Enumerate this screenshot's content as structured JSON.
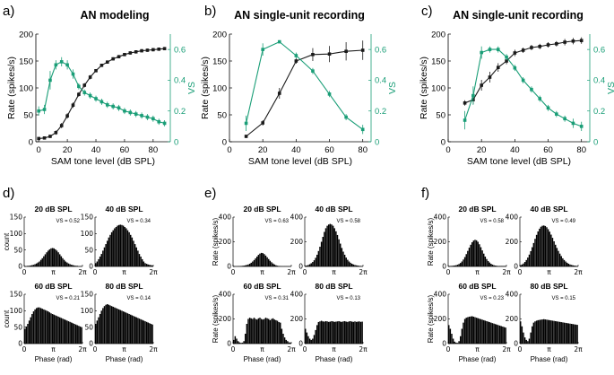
{
  "chart_data": [
    {
      "type": "line",
      "panel": "a)",
      "title": "AN modeling",
      "xlabel": "SAM tone level (dB SPL)",
      "ylabel": "Rate (spikes/s)",
      "ylabel_right": "VS",
      "xlim": [
        -2,
        92
      ],
      "ylim": [
        0,
        200
      ],
      "ylim_right": [
        0,
        0.7
      ],
      "xticks": [
        0,
        20,
        40,
        60,
        80
      ],
      "yticks": [
        0,
        50,
        100,
        150,
        200
      ],
      "yticks_right": [
        0,
        0.2,
        0.4,
        0.6
      ],
      "colors": {
        "rate": "#1a1a1a",
        "vs": "#1a9e77"
      },
      "series": [
        {
          "axis": "left",
          "x": [
            0,
            4,
            8,
            12,
            16,
            20,
            24,
            28,
            32,
            36,
            40,
            44,
            48,
            52,
            56,
            60,
            64,
            68,
            72,
            76,
            80,
            84,
            88
          ],
          "values": [
            6,
            7,
            10,
            17,
            30,
            48,
            68,
            88,
            105,
            120,
            132,
            142,
            148,
            154,
            158,
            162,
            165,
            167,
            169,
            170,
            171,
            172,
            173
          ],
          "err": [
            2,
            2,
            3,
            4,
            5,
            5,
            5,
            4,
            4,
            4,
            3,
            3,
            3,
            3,
            3,
            3,
            3,
            3,
            3,
            3,
            3,
            3,
            3
          ]
        },
        {
          "axis": "right",
          "x": [
            0,
            4,
            8,
            12,
            16,
            20,
            24,
            28,
            32,
            36,
            40,
            44,
            48,
            52,
            56,
            60,
            64,
            68,
            72,
            76,
            80,
            84,
            88
          ],
          "values": [
            0.2,
            0.21,
            0.4,
            0.5,
            0.52,
            0.5,
            0.44,
            0.36,
            0.32,
            0.3,
            0.28,
            0.26,
            0.24,
            0.23,
            0.22,
            0.2,
            0.19,
            0.18,
            0.17,
            0.16,
            0.15,
            0.13,
            0.12
          ],
          "err": [
            0.03,
            0.03,
            0.06,
            0.03,
            0.03,
            0.03,
            0.03,
            0.02,
            0.02,
            0.02,
            0.02,
            0.02,
            0.02,
            0.02,
            0.02,
            0.02,
            0.02,
            0.02,
            0.02,
            0.02,
            0.02,
            0.02,
            0.02
          ]
        }
      ]
    },
    {
      "type": "line",
      "panel": "b)",
      "title": "AN single-unit recording",
      "xlabel": "SAM tone level (dB SPL)",
      "ylabel": "Rate (spikes/s)",
      "ylabel_right": "VS",
      "xlim": [
        0,
        85
      ],
      "ylim": [
        0,
        200
      ],
      "ylim_right": [
        0,
        0.7
      ],
      "xticks": [
        0,
        20,
        40,
        60,
        80
      ],
      "yticks": [
        0,
        50,
        100,
        150,
        200
      ],
      "yticks_right": [
        0,
        0.2,
        0.4,
        0.6
      ],
      "colors": {
        "rate": "#1a1a1a",
        "vs": "#1a9e77"
      },
      "series": [
        {
          "axis": "left",
          "x": [
            10,
            20,
            30,
            40,
            50,
            60,
            70,
            80
          ],
          "values": [
            10,
            35,
            90,
            150,
            162,
            163,
            168,
            170
          ],
          "err": [
            3,
            5,
            10,
            5,
            12,
            15,
            17,
            18
          ]
        },
        {
          "axis": "right",
          "x": [
            10,
            20,
            30,
            40,
            50,
            60,
            70,
            80
          ],
          "values": [
            0.12,
            0.6,
            0.65,
            0.56,
            0.46,
            0.31,
            0.16,
            0.08
          ],
          "err": [
            0.05,
            0.04,
            0.01,
            0.02,
            0.02,
            0.02,
            0.02,
            0.03
          ]
        }
      ]
    },
    {
      "type": "line",
      "panel": "c)",
      "title": "AN single-unit recording",
      "xlabel": "SAM tone level (dB SPL)",
      "ylabel": "Rate (spikes/s)",
      "ylabel_right": "VS",
      "xlim": [
        0,
        85
      ],
      "ylim": [
        0,
        200
      ],
      "ylim_right": [
        0,
        0.7
      ],
      "xticks": [
        0,
        20,
        40,
        60,
        80
      ],
      "yticks": [
        0,
        50,
        100,
        150,
        200
      ],
      "yticks_right": [
        0,
        0.2,
        0.4,
        0.6
      ],
      "colors": {
        "rate": "#1a1a1a",
        "vs": "#1a9e77"
      },
      "series": [
        {
          "axis": "left",
          "x": [
            10,
            15,
            20,
            25,
            30,
            35,
            40,
            45,
            50,
            55,
            60,
            65,
            70,
            75,
            80
          ],
          "values": [
            72,
            78,
            105,
            120,
            138,
            150,
            165,
            170,
            175,
            177,
            180,
            182,
            185,
            187,
            188
          ],
          "err": [
            5,
            8,
            10,
            10,
            8,
            6,
            6,
            5,
            5,
            5,
            5,
            5,
            6,
            6,
            6
          ]
        },
        {
          "axis": "right",
          "x": [
            10,
            15,
            20,
            25,
            30,
            35,
            40,
            45,
            50,
            55,
            60,
            65,
            70,
            75,
            80
          ],
          "values": [
            0.14,
            0.3,
            0.58,
            0.6,
            0.6,
            0.55,
            0.48,
            0.4,
            0.34,
            0.28,
            0.22,
            0.18,
            0.15,
            0.12,
            0.1
          ],
          "err": [
            0.06,
            0.06,
            0.04,
            0.02,
            0.02,
            0.02,
            0.02,
            0.02,
            0.02,
            0.02,
            0.02,
            0.02,
            0.02,
            0.03,
            0.03
          ]
        }
      ]
    },
    {
      "type": "bar",
      "panel": "d)",
      "ylabel": "count",
      "xlabel": "Phase (rad)",
      "ylim": [
        0,
        150
      ],
      "yticks": [
        0,
        50,
        100,
        150
      ],
      "xticks": [
        "0",
        "π",
        "2π"
      ],
      "histograms": [
        {
          "title": "20 dB SPL",
          "vs": "VS = 0.52",
          "values": [
            1,
            1,
            2,
            2,
            3,
            4,
            5,
            7,
            9,
            12,
            15,
            20,
            25,
            31,
            37,
            43,
            48,
            52,
            55,
            56,
            55,
            52,
            48,
            43,
            37,
            31,
            25,
            20,
            15,
            12,
            9,
            7,
            5,
            4,
            3,
            2,
            2,
            1,
            1,
            1
          ]
        },
        {
          "title": "40 dB SPL",
          "vs": "VS = 0.34",
          "values": [
            10,
            15,
            22,
            30,
            38,
            48,
            58,
            68,
            78,
            88,
            96,
            104,
            110,
            116,
            120,
            124,
            126,
            127,
            126,
            124,
            120,
            116,
            110,
            104,
            96,
            88,
            78,
            68,
            58,
            48,
            38,
            30,
            22,
            15,
            10,
            8,
            6,
            5,
            4,
            3
          ]
        },
        {
          "title": "60 dB SPL",
          "vs": "VS = 0.21",
          "values": [
            45,
            52,
            60,
            70,
            80,
            90,
            98,
            104,
            108,
            110,
            110,
            108,
            106,
            104,
            102,
            100,
            98,
            95,
            92,
            90,
            88,
            86,
            84,
            82,
            80,
            78,
            76,
            74,
            72,
            70,
            68,
            66,
            64,
            62,
            60,
            58,
            56,
            54,
            52,
            50
          ]
        },
        {
          "title": "80 dB SPL",
          "vs": "VS = 0.14",
          "values": [
            60,
            70,
            80,
            90,
            100,
            108,
            114,
            118,
            120,
            118,
            116,
            114,
            112,
            110,
            108,
            106,
            104,
            102,
            100,
            98,
            96,
            94,
            92,
            90,
            88,
            86,
            84,
            82,
            80,
            78,
            76,
            74,
            72,
            70,
            68,
            66,
            64,
            62,
            60,
            58
          ]
        }
      ]
    },
    {
      "type": "bar",
      "panel": "e)",
      "ylabel": "Rate (spikes/s)",
      "xlabel": "Phase (rad)",
      "ylim": [
        0,
        400
      ],
      "yticks": [
        0,
        200,
        400
      ],
      "xticks": [
        "0",
        "π",
        "2π"
      ],
      "histograms": [
        {
          "title": "20 dB SPL",
          "vs": "VS = 0.63",
          "values": [
            2,
            2,
            2,
            3,
            3,
            4,
            5,
            7,
            9,
            12,
            16,
            22,
            30,
            40,
            52,
            66,
            80,
            94,
            104,
            110,
            108,
            100,
            88,
            74,
            60,
            46,
            34,
            24,
            16,
            10,
            6,
            4,
            3,
            2,
            2,
            2,
            2,
            2,
            2,
            2
          ]
        },
        {
          "title": "40 dB SPL",
          "vs": "VS = 0.58",
          "values": [
            5,
            8,
            12,
            18,
            26,
            36,
            50,
            70,
            95,
            125,
            160,
            200,
            240,
            280,
            310,
            330,
            340,
            345,
            340,
            330,
            310,
            285,
            255,
            220,
            185,
            150,
            120,
            95,
            72,
            54,
            40,
            30,
            22,
            16,
            12,
            9,
            7,
            5,
            4,
            3
          ]
        },
        {
          "title": "60 dB SPL",
          "vs": "VS = 0.31",
          "values": [
            30,
            60,
            40,
            20,
            10,
            6,
            8,
            20,
            80,
            160,
            200,
            210,
            205,
            200,
            210,
            200,
            195,
            205,
            210,
            200,
            195,
            200,
            210,
            205,
            200,
            190,
            200,
            205,
            195,
            190,
            185,
            175,
            170,
            120,
            80,
            50,
            30,
            20,
            10,
            8
          ]
        },
        {
          "title": "80 dB SPL",
          "vs": "VS = 0.13",
          "values": [
            120,
            90,
            60,
            40,
            30,
            40,
            70,
            110,
            150,
            175,
            180,
            185,
            180,
            178,
            182,
            180,
            176,
            178,
            182,
            180,
            176,
            178,
            180,
            182,
            178,
            176,
            180,
            182,
            178,
            176,
            180,
            182,
            178,
            176,
            180,
            176,
            178,
            180,
            176,
            178
          ]
        }
      ]
    },
    {
      "type": "bar",
      "panel": "f)",
      "ylabel": "Rate (spikes/s)",
      "xlabel": "Phase (rad)",
      "ylim": [
        0,
        400
      ],
      "yticks": [
        0,
        200,
        400
      ],
      "xticks": [
        "0",
        "π",
        "2π"
      ],
      "histograms": [
        {
          "title": "20 dB SPL",
          "vs": "VS = 0.58",
          "values": [
            4,
            4,
            5,
            6,
            8,
            10,
            14,
            20,
            28,
            40,
            56,
            76,
            100,
            126,
            152,
            176,
            196,
            210,
            216,
            212,
            200,
            180,
            156,
            130,
            104,
            80,
            60,
            44,
            32,
            22,
            15,
            10,
            7,
            5,
            4,
            4,
            4,
            4,
            4,
            4
          ]
        },
        {
          "title": "40 dB SPL",
          "vs": "VS = 0.49",
          "values": [
            10,
            16,
            24,
            36,
            52,
            72,
            96,
            124,
            156,
            190,
            224,
            256,
            284,
            306,
            322,
            330,
            332,
            328,
            318,
            302,
            282,
            258,
            232,
            204,
            176,
            150,
            126,
            104,
            84,
            66,
            52,
            40,
            30,
            22,
            16,
            12,
            9,
            7,
            5,
            4
          ]
        },
        {
          "title": "60 dB SPL",
          "vs": "VS = 0.23",
          "values": [
            150,
            120,
            80,
            40,
            16,
            8,
            6,
            20,
            60,
            120,
            170,
            200,
            210,
            214,
            218,
            220,
            222,
            218,
            214,
            210,
            206,
            202,
            198,
            194,
            190,
            186,
            182,
            178,
            174,
            170,
            166,
            162,
            158,
            154,
            150,
            146,
            142,
            138,
            134,
            130
          ]
        },
        {
          "title": "80 dB SPL",
          "vs": "VS = 0.15",
          "values": [
            180,
            140,
            90,
            50,
            30,
            20,
            40,
            90,
            140,
            170,
            180,
            186,
            190,
            192,
            194,
            196,
            198,
            196,
            194,
            192,
            190,
            188,
            186,
            184,
            182,
            180,
            178,
            176,
            174,
            172,
            170,
            168,
            166,
            164,
            162,
            160,
            158,
            156,
            154,
            152
          ]
        }
      ]
    }
  ]
}
